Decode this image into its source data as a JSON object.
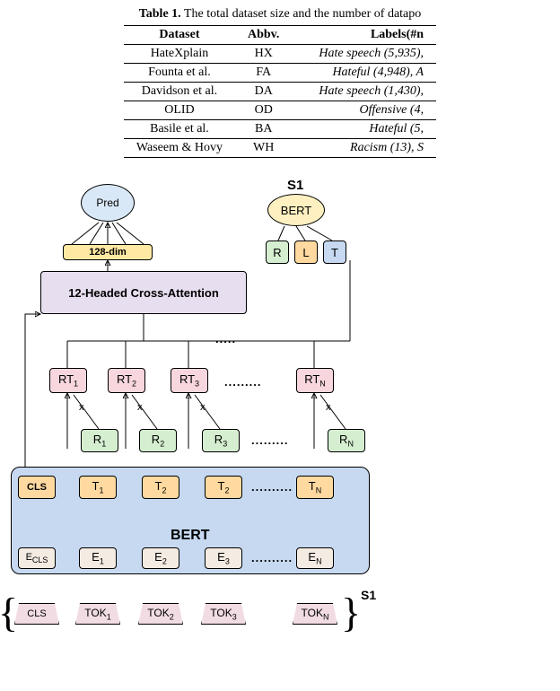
{
  "table": {
    "caption_prefix": "Table 1.",
    "caption_rest": "   The total dataset size and the number of datapo",
    "headers": [
      "Dataset",
      "Abbv.",
      "Labels(#n"
    ],
    "rows": [
      [
        "HateXplain",
        "HX",
        "Hate speech (5,935),"
      ],
      [
        "Founta et al.",
        "FA",
        "Hateful (4,948), A"
      ],
      [
        "Davidson et al.",
        "DA",
        "Hate speech (1,430),"
      ],
      [
        "OLID",
        "OD",
        "Offensive (4,"
      ],
      [
        "Basile et al.",
        "BA",
        "Hateful (5,"
      ],
      [
        "Waseem & Hovy",
        "WH",
        "Racism (13), S"
      ]
    ]
  },
  "diagram": {
    "colors": {
      "pred_fill": "#d9e8f7",
      "dim128_fill": "#ffe9a3",
      "cross_fill": "#e7deef",
      "rt_fill": "#f7d6dd",
      "r_fill": "#d4eecf",
      "cls_fill": "#ffd9a0",
      "t_fill": "#ffd9a0",
      "e_fill": "#f4ebe3",
      "tok_fill": "#f2dce4",
      "bert_main_fill": "#c6d9f1",
      "bert_s1_fill": "#fff0c1",
      "L_fill": "#ffd9a0",
      "T_fill": "#c6d9f1",
      "R_fill": "#d4eecf",
      "line": "#000000"
    },
    "labels": {
      "pred": "Pred",
      "dim128": "128-dim",
      "cross": "12-Headed Cross-Attention",
      "bert_main": "BERT",
      "bert_s1": "BERT",
      "s1": "S1",
      "s1_bottom": "S1",
      "R": "R",
      "L": "L",
      "T": "T",
      "CLS": "CLS",
      "Ecls": "E_CLS",
      "tok_cls": "CLS"
    },
    "rt": [
      "RT_1",
      "RT_2",
      "RT_3",
      "RT_N"
    ],
    "r": [
      "R_1",
      "R_2",
      "R_3",
      "R_N"
    ],
    "t": [
      "T_1",
      "T_2",
      "T_2",
      "T_N"
    ],
    "e": [
      "E_1",
      "E_2",
      "E_3",
      "E_N"
    ],
    "tok": [
      "TOK_1",
      "TOK_2",
      "TOK_3",
      "TOK_N"
    ],
    "dots_top": ".....",
    "dots_rt": ".........",
    "dots_t": "..........",
    "dots_e": "..........",
    "x_mark": "x"
  }
}
